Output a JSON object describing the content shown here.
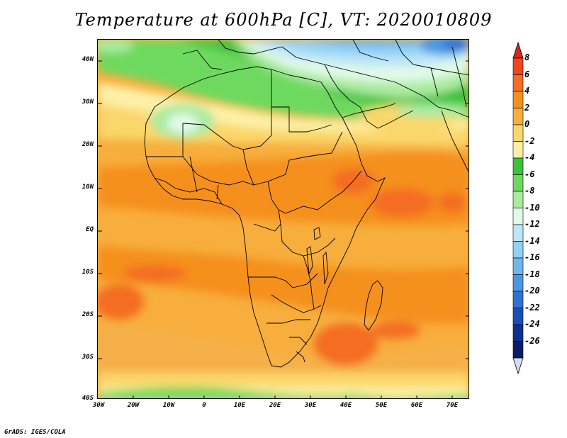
{
  "title": "Temperature at 600hPa [C], VT: 2020010809",
  "credit": "GrADS: IGES/COLA",
  "map": {
    "lat_labels": [
      "40N",
      "30N",
      "20N",
      "10N",
      "EQ",
      "10S",
      "20S",
      "30S",
      "40S"
    ],
    "lon_labels": [
      "30W",
      "20W",
      "10W",
      "0",
      "10E",
      "20E",
      "30E",
      "40E",
      "50E",
      "60E",
      "70E"
    ]
  },
  "colorbar": {
    "labels": [
      "8",
      "6",
      "4",
      "2",
      "0",
      "-2",
      "-4",
      "-6",
      "-8",
      "-10",
      "-12",
      "-14",
      "-16",
      "-18",
      "-20",
      "-22",
      "-24",
      "-26"
    ],
    "colors": [
      "#d7261c",
      "#f0461e",
      "#f46d22",
      "#f5901f",
      "#f7ae3d",
      "#fad76b",
      "#fdf0a6",
      "#3cc13c",
      "#6ed95e",
      "#abeba0",
      "#e1fae8",
      "#bde6f8",
      "#94d2f5",
      "#6eb8eb",
      "#4b97e1",
      "#2f72d1",
      "#1a4fb7",
      "#0e318f",
      "#0a1d63",
      "#d5dcf8"
    ]
  }
}
